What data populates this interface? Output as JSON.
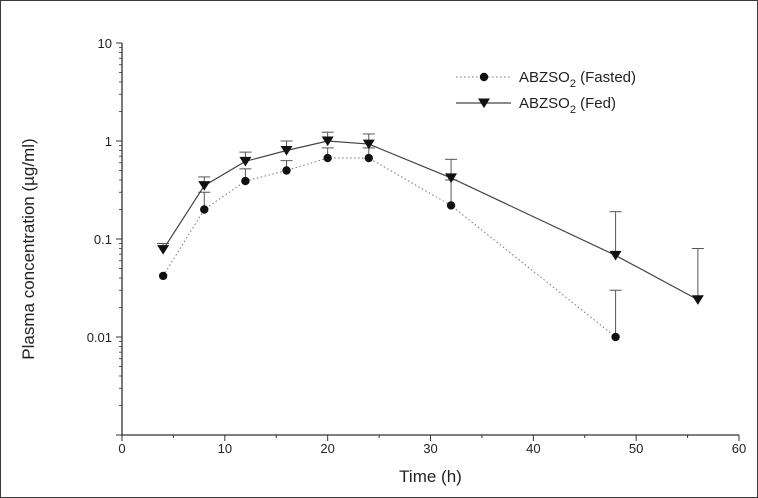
{
  "chart_data": {
    "type": "scatter",
    "xlabel": "Time (h)",
    "ylabel": "Plasma concentration (µg/ml)",
    "xlim": [
      0,
      60
    ],
    "ylim": [
      0.001,
      10
    ],
    "yscale": "log",
    "xticks": [
      "0",
      "10",
      "20",
      "30",
      "40",
      "50",
      "60"
    ],
    "yticks": [
      "0.01",
      "0.1",
      "1",
      "10"
    ],
    "legend_position": "top-right",
    "series": [
      {
        "name": "ABZSO2 (Fasted)",
        "legend": {
          "base": "ABZSO",
          "sub": "2",
          "suffix": " (Fasted)"
        },
        "marker": "circle",
        "line": "dotted",
        "x": [
          4,
          8,
          12,
          16,
          20,
          24,
          32,
          48
        ],
        "y": [
          0.042,
          0.2,
          0.39,
          0.5,
          0.67,
          0.67,
          0.22,
          0.01
        ],
        "error_upper": [
          null,
          0.3,
          0.52,
          0.63,
          0.85,
          0.85,
          0.4,
          0.03
        ]
      },
      {
        "name": "ABZSO2 (Fed)",
        "legend": {
          "base": "ABZSO",
          "sub": "2",
          "suffix": " (Fed)"
        },
        "marker": "triangle-down",
        "line": "solid",
        "x": [
          4,
          8,
          12,
          16,
          20,
          24,
          32,
          48,
          56
        ],
        "y": [
          0.078,
          0.35,
          0.62,
          0.8,
          1.0,
          0.93,
          0.42,
          0.068,
          0.024
        ],
        "error_upper": [
          0.09,
          0.43,
          0.77,
          1.0,
          1.23,
          1.18,
          0.65,
          0.19,
          0.08
        ]
      }
    ]
  }
}
